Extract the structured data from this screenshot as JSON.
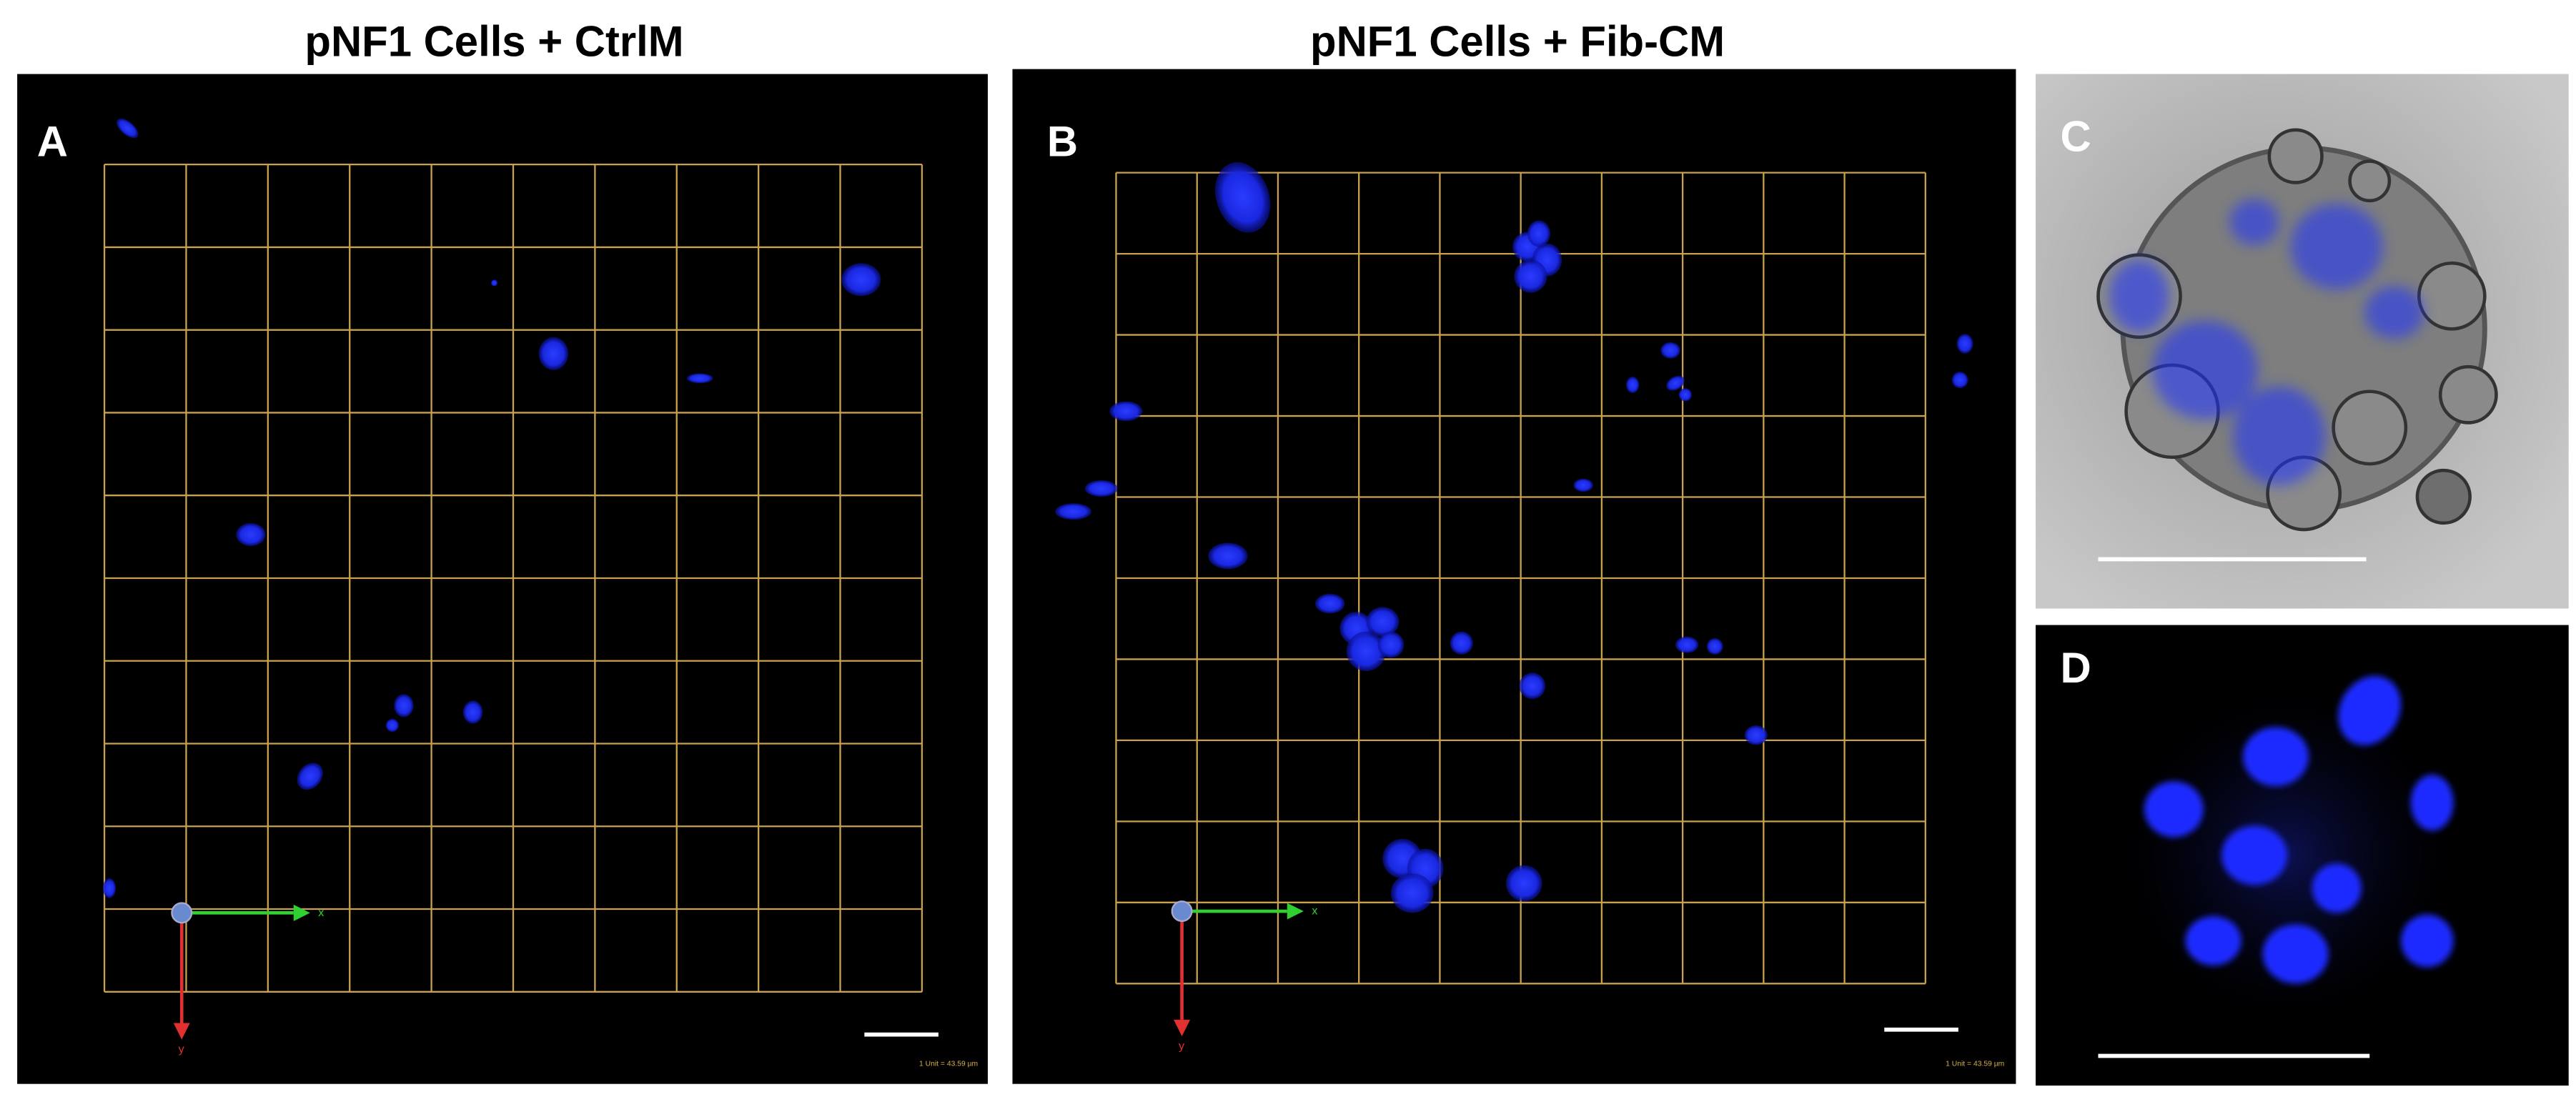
{
  "titles": [
    "pNF1 Cells + CtrlM",
    "pNF1 Cells + Fib-CM"
  ],
  "panels": [
    {
      "label": "A"
    },
    {
      "label": "B"
    },
    {
      "label": "C"
    },
    {
      "label": "D"
    }
  ],
  "axes": {
    "x": "x",
    "y": "y"
  },
  "scale_text": "1 Unit = 43.59 µm"
}
